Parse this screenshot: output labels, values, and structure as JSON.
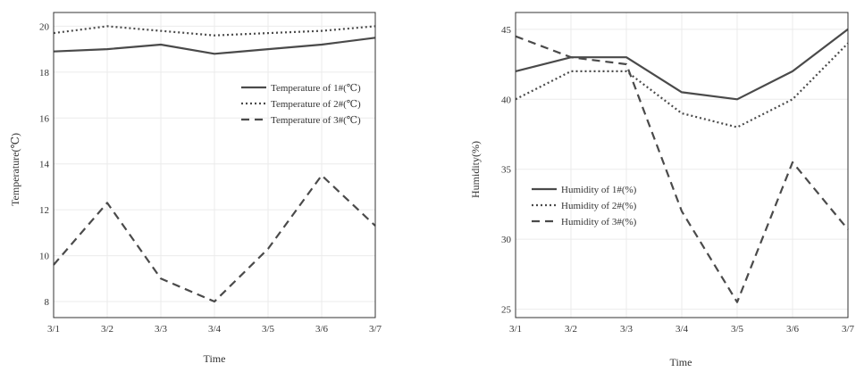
{
  "chart_data": [
    {
      "type": "line",
      "title": "",
      "xlabel": "Time",
      "ylabel": "Temperature(℃)",
      "categories": [
        "3/1",
        "3/2",
        "3/3",
        "3/4",
        "3/5",
        "3/6",
        "3/7"
      ],
      "ylim": [
        7.3,
        20.6
      ],
      "yticks": [
        "8",
        "10",
        "12",
        "14",
        "16",
        "18",
        "20"
      ],
      "grid": true,
      "legend_position": "right",
      "series": [
        {
          "name": "Temperature of 1#(℃)",
          "dash": "solid",
          "values": [
            18.9,
            19.0,
            19.2,
            18.8,
            19.0,
            19.2,
            19.5
          ]
        },
        {
          "name": "Temperature of 2#(℃)",
          "dash": "dotted",
          "values": [
            19.7,
            20.0,
            19.8,
            19.6,
            19.7,
            19.8,
            20.0
          ]
        },
        {
          "name": "Temperature of 3#(℃)",
          "dash": "dashed",
          "values": [
            9.6,
            12.3,
            9.0,
            8.0,
            10.3,
            13.5,
            11.3
          ]
        }
      ]
    },
    {
      "type": "line",
      "title": "",
      "xlabel": "Time",
      "ylabel": "Humidity(%)",
      "categories": [
        "3/1",
        "3/2",
        "3/3",
        "3/4",
        "3/5",
        "3/6",
        "3/7"
      ],
      "ylim": [
        24.4,
        46.2
      ],
      "yticks": [
        "25",
        "30",
        "35",
        "40",
        "45"
      ],
      "grid": true,
      "legend_position": "left",
      "series": [
        {
          "name": "Humidity of 1#(%)",
          "dash": "solid",
          "values": [
            42.0,
            43.0,
            43.0,
            40.5,
            40.0,
            42.0,
            45.0
          ]
        },
        {
          "name": "Humidity of 2#(%)",
          "dash": "dotted",
          "values": [
            40.0,
            42.0,
            42.0,
            39.0,
            38.0,
            40.0,
            44.0
          ]
        },
        {
          "name": "Humidity of 3#(%)",
          "dash": "dashed",
          "values": [
            44.5,
            43.0,
            42.5,
            32.0,
            25.5,
            35.5,
            30.7
          ]
        }
      ]
    }
  ]
}
